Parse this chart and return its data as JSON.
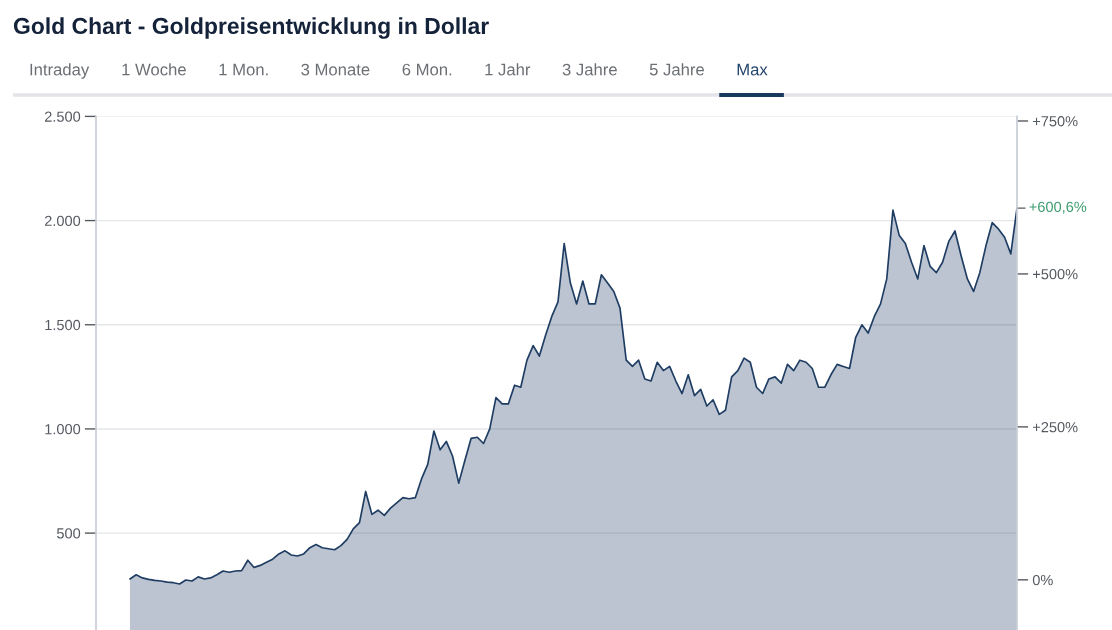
{
  "chart_data": [
    {
      "type": "other",
      "title": "Gold Chart - Goldpreisentwicklung in Dollar",
      "annotations": [
        "Intraday",
        "1 Woche",
        "1 Mon.",
        "3 Monate",
        "6 Mon.",
        "1 Jahr",
        "3 Jahre",
        "5 Jahre",
        "Max"
      ]
    },
    {
      "type": "area",
      "annotations": [
        "+600,6%"
      ],
      "categories": [
        null,
        null,
        null,
        null,
        null,
        null,
        null,
        null,
        null,
        null,
        null,
        null,
        null,
        null,
        null,
        null,
        null,
        null,
        null,
        null,
        null,
        null,
        null,
        null,
        null,
        null,
        null,
        null,
        null,
        null,
        null,
        null,
        null,
        null,
        null,
        null,
        null,
        null,
        null,
        null,
        null,
        null,
        null,
        null,
        null,
        null,
        null,
        null,
        null,
        null,
        null,
        null,
        null,
        null,
        null,
        null,
        null,
        null,
        null,
        null,
        null,
        null,
        null,
        null,
        null,
        null,
        null,
        null,
        null,
        null,
        null,
        null,
        null,
        null,
        null,
        null,
        null,
        null,
        null,
        null,
        null,
        null,
        null,
        null,
        null,
        null,
        null,
        null,
        null,
        null,
        null,
        null,
        null,
        null,
        null,
        null,
        null,
        null,
        null,
        null,
        null,
        null,
        null,
        null,
        null,
        null,
        null,
        null,
        null,
        null,
        null,
        null,
        null,
        null,
        null,
        null,
        null,
        null,
        null,
        null,
        null,
        null,
        null,
        null,
        null,
        null,
        null,
        null,
        null,
        null,
        null,
        null,
        null,
        null,
        null,
        null,
        null,
        null,
        null,
        null,
        null,
        null,
        null,
        null
      ],
      "series": [
        {
          "color": "#1f3d63",
          "values": [
            280,
            300,
            285,
            278,
            273,
            270,
            265,
            262,
            256,
            275,
            270,
            290,
            280,
            285,
            300,
            318,
            312,
            318,
            320,
            370,
            335,
            345,
            360,
            375,
            400,
            415,
            395,
            390,
            400,
            430,
            445,
            430,
            425,
            420,
            440,
            470,
            520,
            550,
            700,
            590,
            610,
            585,
            620,
            645,
            670,
            665,
            670,
            760,
            830,
            990,
            900,
            940,
            870,
            740,
            850,
            955,
            960,
            930,
            1000,
            1150,
            1120,
            1120,
            1210,
            1200,
            1330,
            1400,
            1350,
            1450,
            1540,
            1610,
            1890,
            1700,
            1600,
            1710,
            1600,
            1600,
            1740,
            1700,
            1660,
            1580,
            1330,
            1300,
            1330,
            1240,
            1230,
            1320,
            1280,
            1300,
            1230,
            1170,
            1260,
            1160,
            1190,
            1110,
            1140,
            1070,
            1090,
            1250,
            1280,
            1340,
            1320,
            1200,
            1170,
            1240,
            1250,
            1220,
            1310,
            1280,
            1330,
            1320,
            1290,
            1200,
            1200,
            1260,
            1310,
            1300,
            1290,
            1440,
            1500,
            1460,
            1540,
            1600,
            1720,
            2050,
            1930,
            1890,
            1800,
            1720,
            1880,
            1780,
            1750,
            1800,
            1900,
            1950,
            1830,
            1720,
            1660,
            1750,
            1880,
            1990,
            1960,
            1920,
            1840,
            2060
          ]
        }
      ],
      "ylim": [
        35,
        2500
      ],
      "yticks": [
        {
          "value": 500,
          "label": "500"
        },
        {
          "value": 1000,
          "label": "1.000"
        },
        {
          "value": 1500,
          "label": "1.500"
        },
        {
          "value": 2000,
          "label": "2.000"
        },
        {
          "value": 2500,
          "label": "2.500"
        }
      ],
      "y2lim": [
        -82,
        757.5
      ],
      "y2ticks": [
        {
          "value": 0,
          "label": "0%"
        },
        {
          "value": 250,
          "label": "+250%"
        },
        {
          "value": 500,
          "label": "+500%"
        },
        {
          "value": 750,
          "label": "+750%"
        }
      ],
      "grid": "y"
    }
  ]
}
